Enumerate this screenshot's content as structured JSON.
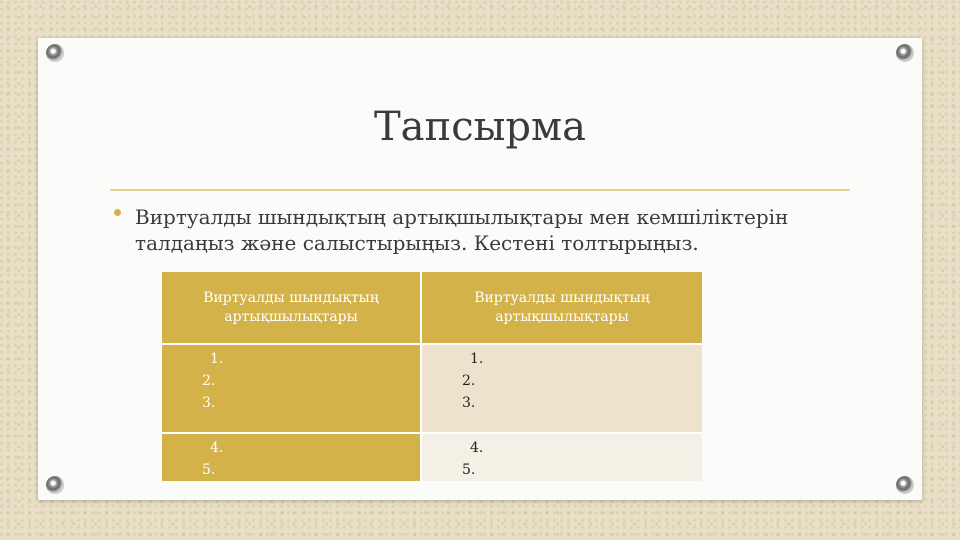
{
  "title": "Тапсырма",
  "bullet": "Виртуалды шындықтың артықшылықтары мен кемшіліктерін талдаңыз және салыстырыңыз. Кестені толтырыңыз.",
  "table": {
    "header": [
      "Виртуалды шындықтың артықшылықтары",
      "Виртуалды шындықтың артықшылықтары"
    ],
    "rows": [
      [
        [
          "1.",
          "2.",
          "3."
        ],
        [
          "1.",
          "2.",
          "3."
        ]
      ],
      [
        [
          "4.",
          "5."
        ],
        [
          "4.",
          "5."
        ]
      ]
    ]
  }
}
